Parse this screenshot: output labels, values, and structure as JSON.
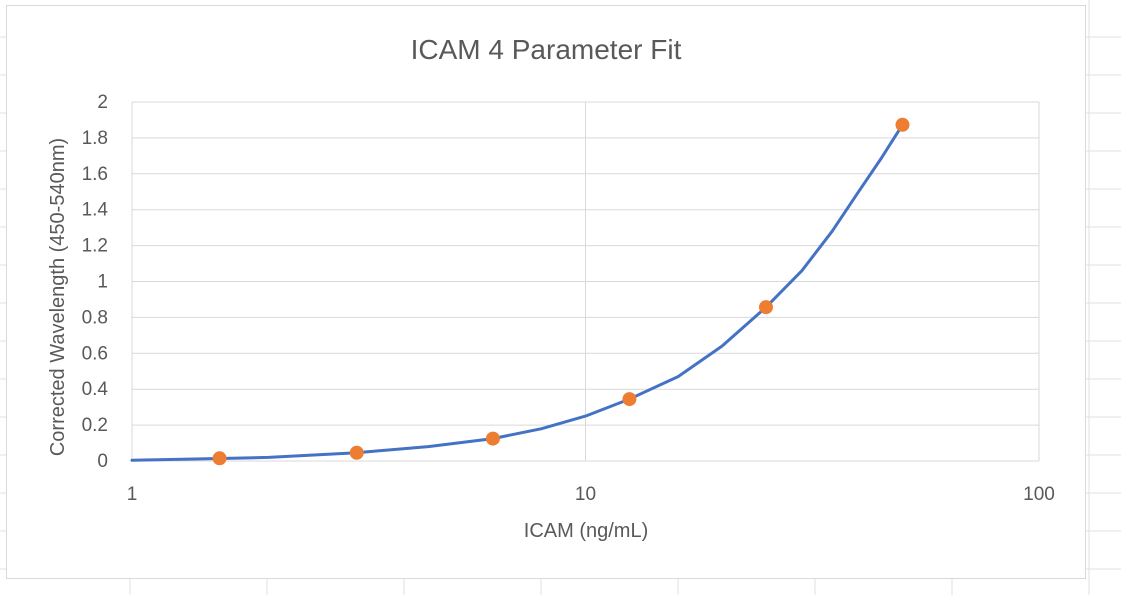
{
  "chart_data": {
    "type": "scatter",
    "title": "ICAM 4 Parameter Fit",
    "xlabel": "ICAM (ng/mL)",
    "ylabel": "Corrected Wavelength (450-540nm)",
    "x_scale": "log",
    "xlim": [
      1,
      100
    ],
    "ylim": [
      0,
      2
    ],
    "x_ticks": [
      1,
      10,
      100
    ],
    "x_tick_labels": [
      "1",
      "10",
      "100"
    ],
    "y_ticks": [
      0,
      0.2,
      0.4,
      0.6,
      0.8,
      1,
      1.2,
      1.4,
      1.6,
      1.8,
      2
    ],
    "y_tick_labels": [
      "0",
      "0.2",
      "0.4",
      "0.6",
      "0.8",
      "1",
      "1.2",
      "1.4",
      "1.6",
      "1.8",
      "2"
    ],
    "grid": true,
    "legend": "none",
    "series": [
      {
        "kind": "points",
        "color": "#ED7D31",
        "points": [
          {
            "x": 1.56,
            "y": 0.015
          },
          {
            "x": 3.13,
            "y": 0.046
          },
          {
            "x": 6.25,
            "y": 0.125
          },
          {
            "x": 12.5,
            "y": 0.345
          },
          {
            "x": 25,
            "y": 0.857
          },
          {
            "x": 50,
            "y": 1.873
          }
        ]
      },
      {
        "kind": "fit-line",
        "color": "#4472C4",
        "points": [
          {
            "x": 1,
            "y": 0.004
          },
          {
            "x": 1.56,
            "y": 0.014
          },
          {
            "x": 2,
            "y": 0.02
          },
          {
            "x": 3.13,
            "y": 0.046
          },
          {
            "x": 4.5,
            "y": 0.08
          },
          {
            "x": 6.25,
            "y": 0.125
          },
          {
            "x": 8,
            "y": 0.18
          },
          {
            "x": 10,
            "y": 0.25
          },
          {
            "x": 12.5,
            "y": 0.345
          },
          {
            "x": 16,
            "y": 0.47
          },
          {
            "x": 20,
            "y": 0.64
          },
          {
            "x": 25,
            "y": 0.857
          },
          {
            "x": 30,
            "y": 1.06
          },
          {
            "x": 35,
            "y": 1.28
          },
          {
            "x": 40,
            "y": 1.5
          },
          {
            "x": 45,
            "y": 1.69
          },
          {
            "x": 50,
            "y": 1.873
          }
        ]
      }
    ]
  }
}
